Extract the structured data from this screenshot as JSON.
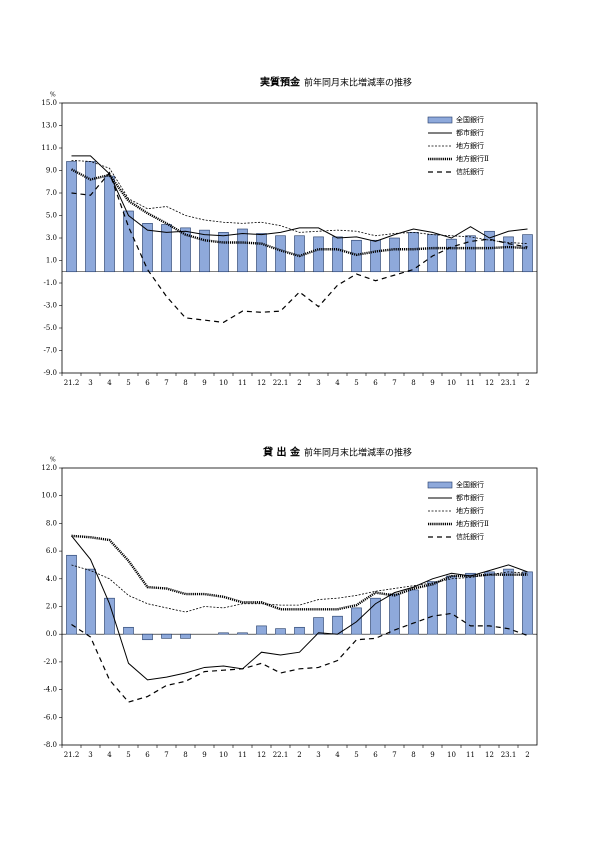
{
  "chart_data": [
    {
      "type": "bar",
      "title": "実質預金",
      "subtitle": "前年同月末比増減率の推移",
      "y_unit": "%",
      "categories": [
        "21.2",
        "3",
        "4",
        "5",
        "6",
        "7",
        "8",
        "9",
        "10",
        "11",
        "12",
        "22.1",
        "2",
        "3",
        "4",
        "5",
        "6",
        "7",
        "8",
        "9",
        "10",
        "11",
        "12",
        "23.1",
        "2"
      ],
      "ylim": [
        -9,
        15
      ],
      "yticks": [
        {
          "value": -9,
          "label": "-9.0"
        },
        {
          "value": -7,
          "label": "-7.0"
        },
        {
          "value": -5,
          "label": "-5.0"
        },
        {
          "value": -3,
          "label": "-3.0"
        },
        {
          "value": -1,
          "label": "-1.0"
        },
        {
          "value": 1,
          "label": "1.0"
        },
        {
          "value": 3,
          "label": "3.0"
        },
        {
          "value": 5,
          "label": "5.0"
        },
        {
          "value": 7,
          "label": "7.0"
        },
        {
          "value": 9,
          "label": "9.0"
        },
        {
          "value": 11,
          "label": "11.0"
        },
        {
          "value": 13,
          "label": "13.0"
        },
        {
          "value": 15,
          "label": "15.0"
        }
      ],
      "series": [
        {
          "name": "全国銀行",
          "style": "bar",
          "color": "#8ea9db",
          "values": [
            9.8,
            9.8,
            8.5,
            5.4,
            4.3,
            4.2,
            3.9,
            3.7,
            3.5,
            3.8,
            3.4,
            3.2,
            3.2,
            3.1,
            3.1,
            2.8,
            2.8,
            3.0,
            3.5,
            3.3,
            2.9,
            3.2,
            3.6,
            3.1,
            3.3
          ]
        },
        {
          "name": "都市銀行",
          "style": "solid",
          "color": "#000000",
          "values": [
            10.3,
            10.3,
            8.7,
            5.0,
            3.7,
            3.5,
            3.6,
            3.3,
            3.2,
            3.4,
            3.3,
            3.5,
            3.9,
            3.9,
            3.0,
            3.1,
            2.7,
            3.3,
            3.8,
            3.5,
            3.0,
            4.0,
            3.0,
            3.6,
            3.8
          ]
        },
        {
          "name": "地方銀行",
          "style": "dotted",
          "color": "#000000",
          "values": [
            9.9,
            9.8,
            9.2,
            6.5,
            5.6,
            5.8,
            5.0,
            4.6,
            4.4,
            4.3,
            4.4,
            4.1,
            3.5,
            3.6,
            3.7,
            3.6,
            3.2,
            3.4,
            3.5,
            3.3,
            3.2,
            3.1,
            2.8,
            2.6,
            2.5
          ]
        },
        {
          "name": "地方銀行Ⅱ",
          "style": "thick-dotted",
          "color": "#000000",
          "values": [
            9.1,
            8.2,
            8.6,
            6.3,
            5.2,
            4.3,
            3.3,
            2.8,
            2.6,
            2.6,
            2.5,
            1.9,
            1.4,
            2.0,
            2.0,
            1.5,
            1.8,
            2.0,
            2.0,
            2.1,
            2.1,
            2.1,
            2.1,
            2.2,
            2.1
          ]
        },
        {
          "name": "信託銀行",
          "style": "dashed",
          "color": "#000000",
          "values": [
            7.0,
            6.8,
            8.8,
            4.0,
            0.2,
            -2.2,
            -4.1,
            -4.3,
            -4.5,
            -3.5,
            -3.6,
            -3.5,
            -1.8,
            -3.1,
            -1.2,
            -0.2,
            -0.8,
            -0.3,
            0.2,
            1.4,
            2.2,
            2.7,
            2.9,
            2.5,
            2.2
          ]
        }
      ]
    },
    {
      "type": "bar",
      "title": "貸 出 金",
      "subtitle": "前年同月末比増減率の推移",
      "y_unit": "%",
      "categories": [
        "21.2",
        "3",
        "4",
        "5",
        "6",
        "7",
        "8",
        "9",
        "10",
        "11",
        "12",
        "22.1",
        "2",
        "3",
        "4",
        "5",
        "6",
        "7",
        "8",
        "9",
        "10",
        "11",
        "12",
        "23.1",
        "2"
      ],
      "ylim": [
        -8,
        12
      ],
      "yticks": [
        {
          "value": -8,
          "label": "-8.0"
        },
        {
          "value": -6,
          "label": "-6.0"
        },
        {
          "value": -4,
          "label": "-4.0"
        },
        {
          "value": -2,
          "label": "-2.0"
        },
        {
          "value": 0,
          "label": "0.0"
        },
        {
          "value": 2,
          "label": "2.0"
        },
        {
          "value": 4,
          "label": "4.0"
        },
        {
          "value": 6,
          "label": "6.0"
        },
        {
          "value": 8,
          "label": "8.0"
        },
        {
          "value": 10,
          "label": "10.0"
        },
        {
          "value": 12,
          "label": "12.0"
        }
      ],
      "series": [
        {
          "name": "全国銀行",
          "style": "bar",
          "color": "#8ea9db",
          "values": [
            5.7,
            4.7,
            2.6,
            0.5,
            -0.4,
            -0.3,
            -0.3,
            0.0,
            0.1,
            0.1,
            0.6,
            0.4,
            0.5,
            1.2,
            1.3,
            1.9,
            2.6,
            2.9,
            3.2,
            3.8,
            4.2,
            4.4,
            4.5,
            4.7,
            4.5
          ]
        },
        {
          "name": "都市銀行",
          "style": "solid",
          "color": "#000000",
          "values": [
            7.1,
            5.4,
            2.2,
            -2.1,
            -3.3,
            -3.1,
            -2.8,
            -2.4,
            -2.3,
            -2.5,
            -1.3,
            -1.5,
            -1.3,
            0.1,
            0.0,
            0.9,
            2.2,
            3.0,
            3.4,
            4.0,
            4.4,
            4.2,
            4.6,
            5.0,
            4.5
          ]
        },
        {
          "name": "地方銀行",
          "style": "dotted",
          "color": "#000000",
          "values": [
            5.0,
            4.6,
            4.0,
            2.8,
            2.2,
            1.9,
            1.6,
            2.0,
            1.9,
            2.2,
            2.2,
            2.1,
            2.1,
            2.5,
            2.6,
            2.8,
            3.1,
            3.3,
            3.5,
            3.7,
            4.0,
            4.1,
            4.3,
            4.5,
            4.4
          ]
        },
        {
          "name": "地方銀行Ⅱ",
          "style": "thick-dotted",
          "color": "#000000",
          "values": [
            7.1,
            7.0,
            6.8,
            5.3,
            3.4,
            3.3,
            2.9,
            2.9,
            2.7,
            2.3,
            2.3,
            1.8,
            1.8,
            1.8,
            1.8,
            2.1,
            3.0,
            2.8,
            3.3,
            3.6,
            4.2,
            4.2,
            4.3,
            4.3,
            4.3
          ]
        },
        {
          "name": "信託銀行",
          "style": "dashed",
          "color": "#000000",
          "values": [
            0.7,
            -0.2,
            -3.3,
            -4.9,
            -4.5,
            -3.7,
            -3.4,
            -2.7,
            -2.6,
            -2.5,
            -2.1,
            -2.8,
            -2.5,
            -2.4,
            -1.9,
            -0.4,
            -0.3,
            0.3,
            0.8,
            1.3,
            1.5,
            0.6,
            0.6,
            0.4,
            -0.1
          ]
        }
      ]
    }
  ]
}
